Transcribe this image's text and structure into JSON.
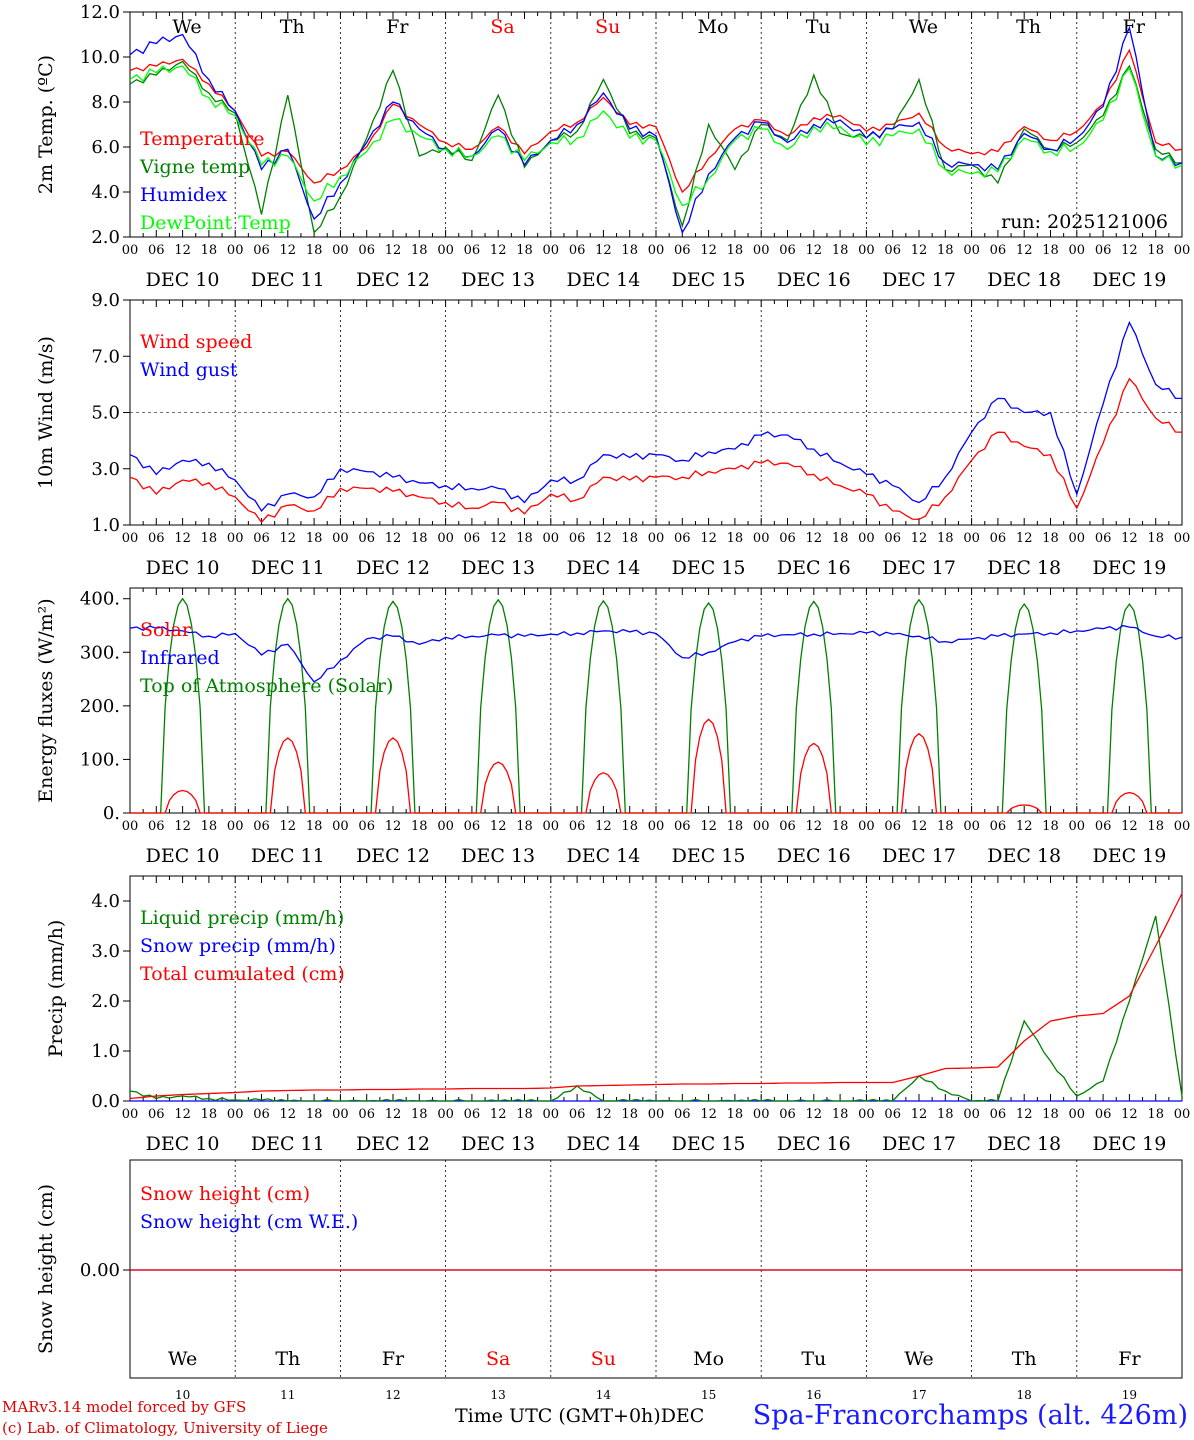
{
  "chart_data": [
    {
      "type": "line",
      "ylabel": "2m Temp. (ºC)",
      "ylim": [
        2,
        12
      ],
      "yticks": [
        "2.0",
        "4.0",
        "6.0",
        "8.0",
        "10.0",
        "12.0"
      ],
      "weekday_labels": [
        "We",
        "Th",
        "Fr",
        "Sa",
        "Su",
        "Mo",
        "Tu",
        "We",
        "Th",
        "Fr"
      ],
      "weekend_color": "#ff0000",
      "run_label": "run: 2025121006",
      "x_hours": [
        0,
        6,
        12,
        18,
        24,
        30,
        36,
        42,
        48,
        54,
        60,
        66,
        72,
        78,
        84,
        90,
        96,
        102,
        108,
        114,
        120,
        126,
        132,
        138,
        144,
        150,
        156,
        162,
        168,
        174,
        180,
        186,
        192,
        198,
        204,
        210,
        216,
        222,
        228,
        234,
        240
      ],
      "series": [
        {
          "name": "Temperature",
          "color": "#ff0000",
          "values": [
            9.4,
            9.6,
            9.9,
            8.8,
            7.6,
            5.6,
            5.8,
            4.4,
            5.0,
            6.0,
            7.9,
            7.0,
            6.2,
            5.9,
            6.9,
            5.7,
            6.7,
            7.1,
            8.2,
            7.0,
            6.9,
            4.0,
            5.5,
            6.8,
            7.2,
            6.5,
            7.3,
            7.4,
            6.7,
            7.0,
            7.5,
            6.0,
            5.7,
            5.8,
            6.9,
            6.3,
            6.7,
            7.9,
            10.3,
            6.2,
            5.9
          ]
        },
        {
          "name": "Vigne temp",
          "color": "#008000",
          "values": [
            8.8,
            9.2,
            9.8,
            8.4,
            7.5,
            3.0,
            8.3,
            2.2,
            3.8,
            6.4,
            9.4,
            5.6,
            6.0,
            5.4,
            8.3,
            5.1,
            6.3,
            6.7,
            9.0,
            6.6,
            6.4,
            2.5,
            7.0,
            5.0,
            7.0,
            6.3,
            9.2,
            6.6,
            6.4,
            6.8,
            9.0,
            5.0,
            5.2,
            4.4,
            6.8,
            5.9,
            6.2,
            7.4,
            9.6,
            5.9,
            5.3
          ]
        },
        {
          "name": "Humidex",
          "color": "#0000ff",
          "values": [
            10.1,
            10.6,
            11.0,
            9.0,
            7.6,
            5.0,
            5.9,
            2.8,
            4.4,
            6.2,
            8.0,
            6.8,
            5.9,
            5.6,
            6.8,
            5.2,
            6.3,
            7.0,
            8.4,
            6.8,
            6.5,
            2.2,
            4.8,
            6.4,
            7.1,
            6.2,
            7.0,
            7.2,
            6.4,
            6.8,
            7.1,
            5.3,
            5.2,
            5.0,
            6.6,
            5.9,
            6.4,
            7.8,
            11.3,
            5.6,
            5.3
          ]
        },
        {
          "name": "DewPoint Temp",
          "color": "#00ff00",
          "values": [
            9.0,
            9.3,
            9.6,
            8.2,
            7.4,
            5.2,
            5.6,
            3.6,
            4.7,
            5.8,
            7.2,
            6.5,
            5.9,
            5.6,
            6.5,
            5.4,
            6.2,
            6.4,
            7.6,
            6.4,
            6.3,
            3.4,
            4.6,
            6.3,
            6.8,
            5.9,
            6.9,
            6.9,
            6.1,
            6.5,
            6.8,
            5.0,
            4.8,
            4.9,
            6.4,
            5.8,
            6.0,
            7.2,
            9.5,
            5.6,
            5.2
          ]
        }
      ]
    },
    {
      "type": "line",
      "ylabel": "10m Wind (m/s)",
      "ylim": [
        1,
        9
      ],
      "yticks": [
        "1.0",
        "3.0",
        "5.0",
        "7.0",
        "9.0"
      ],
      "x_hours": [
        0,
        6,
        12,
        18,
        24,
        30,
        36,
        42,
        48,
        54,
        60,
        66,
        72,
        78,
        84,
        90,
        96,
        102,
        108,
        114,
        120,
        126,
        132,
        138,
        144,
        150,
        156,
        162,
        168,
        174,
        180,
        186,
        192,
        198,
        204,
        210,
        216,
        222,
        228,
        234,
        240
      ],
      "series": [
        {
          "name": "Wind speed",
          "color": "#ff0000",
          "values": [
            2.7,
            2.1,
            2.6,
            2.5,
            2.0,
            1.1,
            1.7,
            1.5,
            2.3,
            2.3,
            2.2,
            2.0,
            1.8,
            1.6,
            1.8,
            1.4,
            2.1,
            1.9,
            2.7,
            2.6,
            2.7,
            2.7,
            2.9,
            3.0,
            3.2,
            3.2,
            2.8,
            2.4,
            2.1,
            1.5,
            1.2,
            2.0,
            3.3,
            4.3,
            3.8,
            3.5,
            1.6,
            3.9,
            6.2,
            4.8,
            4.3
          ]
        },
        {
          "name": "Wind gust",
          "color": "#0000ff",
          "values": [
            3.5,
            2.8,
            3.3,
            3.2,
            2.6,
            1.5,
            2.1,
            2.0,
            3.0,
            2.9,
            2.7,
            2.5,
            2.4,
            2.3,
            2.3,
            1.8,
            2.6,
            2.6,
            3.5,
            3.4,
            3.5,
            3.3,
            3.6,
            3.7,
            4.2,
            4.2,
            3.7,
            3.2,
            2.8,
            2.4,
            1.8,
            2.7,
            4.3,
            5.5,
            5.0,
            5.0,
            2.1,
            5.3,
            8.2,
            6.0,
            5.5
          ]
        }
      ]
    },
    {
      "type": "line",
      "ylabel": "Energy fluxes (W/m²)",
      "ylim": [
        0,
        420
      ],
      "yticks": [
        "0.",
        "100.",
        "200.",
        "300.",
        "400."
      ],
      "series": [
        {
          "name": "Solar",
          "color": "#ff0000",
          "peaks": [
            42,
            140,
            140,
            95,
            75,
            175,
            130,
            148,
            15,
            38
          ]
        },
        {
          "name": "Infrared",
          "color": "#0000ff",
          "x_hours": [
            0,
            6,
            12,
            18,
            24,
            30,
            36,
            42,
            48,
            54,
            60,
            66,
            72,
            78,
            84,
            90,
            96,
            102,
            108,
            114,
            120,
            126,
            132,
            138,
            144,
            150,
            156,
            162,
            168,
            174,
            180,
            186,
            192,
            198,
            204,
            210,
            216,
            222,
            228,
            234,
            240
          ],
          "values": [
            345,
            345,
            340,
            330,
            335,
            295,
            315,
            245,
            285,
            325,
            330,
            315,
            328,
            330,
            332,
            330,
            334,
            336,
            340,
            338,
            335,
            290,
            300,
            320,
            330,
            333,
            334,
            335,
            336,
            334,
            330,
            320,
            325,
            330,
            334,
            336,
            340,
            344,
            347,
            330,
            328
          ]
        },
        {
          "name": "Top of Atmosphere (Solar)",
          "color": "#008000",
          "peaks": [
            400,
            400,
            395,
            398,
            396,
            392,
            395,
            398,
            390,
            390
          ]
        }
      ]
    },
    {
      "type": "line",
      "ylabel": "Precip (mm/h)",
      "ylim": [
        0,
        4.5
      ],
      "yticks": [
        "0.0",
        "1.0",
        "2.0",
        "3.0",
        "4.0"
      ],
      "x_hours": [
        0,
        6,
        12,
        18,
        24,
        30,
        36,
        42,
        48,
        54,
        60,
        66,
        72,
        78,
        84,
        90,
        96,
        102,
        108,
        114,
        120,
        126,
        132,
        138,
        144,
        150,
        156,
        162,
        168,
        174,
        180,
        186,
        192,
        198,
        204,
        210,
        216,
        222,
        228,
        234,
        240
      ],
      "series": [
        {
          "name": "Liquid precip (mm/h)",
          "color": "#008000",
          "values": [
            0.2,
            0.05,
            0.1,
            0.05,
            0.02,
            0.02,
            0,
            0,
            0,
            0,
            0,
            0,
            0,
            0,
            0,
            0,
            0,
            0.3,
            0,
            0,
            0,
            0,
            0,
            0,
            0,
            0,
            0,
            0,
            0,
            0,
            0.5,
            0.2,
            0,
            0,
            1.6,
            0.8,
            0.1,
            0.4,
            2.0,
            3.7,
            0.1
          ]
        },
        {
          "name": "Snow precip (mm/h)",
          "color": "#0000ff",
          "values": [
            0,
            0,
            0,
            0,
            0,
            0,
            0,
            0,
            0,
            0,
            0,
            0,
            0,
            0,
            0,
            0,
            0,
            0,
            0,
            0,
            0,
            0,
            0,
            0,
            0,
            0,
            0,
            0,
            0,
            0,
            0,
            0,
            0,
            0,
            0,
            0,
            0,
            0,
            0,
            0,
            0
          ]
        },
        {
          "name": "Total cumulated (cm)",
          "color": "#ff0000",
          "values": [
            0.05,
            0.1,
            0.13,
            0.15,
            0.17,
            0.2,
            0.21,
            0.22,
            0.22,
            0.23,
            0.23,
            0.24,
            0.24,
            0.25,
            0.25,
            0.25,
            0.26,
            0.3,
            0.31,
            0.32,
            0.33,
            0.34,
            0.34,
            0.35,
            0.35,
            0.36,
            0.36,
            0.37,
            0.37,
            0.37,
            0.5,
            0.65,
            0.66,
            0.68,
            1.2,
            1.6,
            1.7,
            1.75,
            2.1,
            3.1,
            4.15
          ]
        }
      ]
    },
    {
      "type": "line",
      "ylabel": "Snow height (cm)",
      "ytick_value": "0.00",
      "weekday_labels": [
        "We",
        "Th",
        "Fr",
        "Sa",
        "Su",
        "Mo",
        "Tu",
        "We",
        "Th",
        "Fr"
      ],
      "day_numbers": [
        "10",
        "11",
        "12",
        "13",
        "14",
        "15",
        "16",
        "17",
        "18",
        "19"
      ],
      "series": [
        {
          "name": "Snow height (cm)",
          "color": "#ff0000",
          "values": [
            0.0
          ]
        },
        {
          "name": "Snow height (cm W.E.)",
          "color": "#0000ff",
          "values": [
            0.0
          ]
        }
      ]
    }
  ],
  "x_axis": {
    "hour_ticks": [
      "00",
      "06",
      "12",
      "18"
    ],
    "final_tick": "00",
    "date_labels": [
      "DEC 10",
      "DEC 11",
      "DEC 12",
      "DEC 13",
      "DEC 14",
      "DEC 15",
      "DEC 16",
      "DEC 17",
      "DEC 18",
      "DEC 19"
    ]
  },
  "footer": {
    "credit_line1": "MARv3.14 model forced by GFS",
    "credit_line2": "(c) Lab. of Climatology, University of Liege",
    "xaxis_title": "Time UTC (GMT+0h)DEC",
    "station": "Spa-Francorchamps (alt. 426m)"
  }
}
